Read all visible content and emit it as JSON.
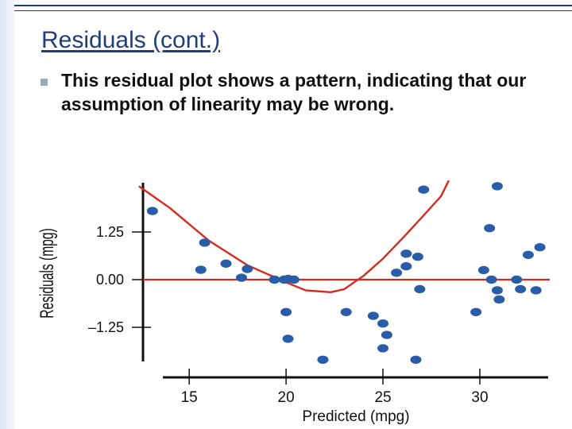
{
  "slide": {
    "title": "Residuals (cont.)",
    "bullet": "This residual plot shows a pattern, indicating that our assumption of linearity may be wrong."
  },
  "colors": {
    "accent": "#1f3f7a",
    "point": "#2a5da8",
    "curve": "#d62a1e",
    "axis": "#111111"
  },
  "chart_data": {
    "type": "scatter",
    "xlabel": "Predicted (mpg)",
    "ylabel": "Residuals (mpg)",
    "x_ticks": [
      15,
      20,
      25,
      30
    ],
    "y_ticks": [
      {
        "value": 1.25,
        "label": "1.25"
      },
      {
        "value": 0,
        "label": "0.00"
      },
      {
        "value": -1.25,
        "label": "–1.25"
      }
    ],
    "xlim": [
      11.8,
      33.5
    ],
    "ylim": [
      -2.1,
      2.4
    ],
    "grid": false,
    "points": [
      {
        "x": 13.1,
        "y": 1.8
      },
      {
        "x": 15.8,
        "y": 0.97
      },
      {
        "x": 15.6,
        "y": 0.26
      },
      {
        "x": 16.9,
        "y": 0.42
      },
      {
        "x": 17.7,
        "y": 0.05
      },
      {
        "x": 18.0,
        "y": 0.28
      },
      {
        "x": 19.4,
        "y": 0.0
      },
      {
        "x": 19.9,
        "y": 0.0
      },
      {
        "x": 20.1,
        "y": 0.02
      },
      {
        "x": 20.4,
        "y": 0.0
      },
      {
        "x": 20.0,
        "y": -0.85
      },
      {
        "x": 20.1,
        "y": -1.55
      },
      {
        "x": 21.9,
        "y": -2.1
      },
      {
        "x": 23.1,
        "y": -0.85
      },
      {
        "x": 24.5,
        "y": -0.95
      },
      {
        "x": 25.0,
        "y": -1.15
      },
      {
        "x": 25.2,
        "y": -1.45
      },
      {
        "x": 25.0,
        "y": -1.8
      },
      {
        "x": 25.7,
        "y": 0.18
      },
      {
        "x": 26.2,
        "y": 0.35
      },
      {
        "x": 26.2,
        "y": 0.68
      },
      {
        "x": 26.8,
        "y": 0.6
      },
      {
        "x": 26.9,
        "y": -0.25
      },
      {
        "x": 26.7,
        "y": -2.1
      },
      {
        "x": 27.1,
        "y": 2.36
      },
      {
        "x": 29.8,
        "y": -0.85
      },
      {
        "x": 30.2,
        "y": 0.25
      },
      {
        "x": 30.5,
        "y": 1.35
      },
      {
        "x": 30.6,
        "y": 0.0
      },
      {
        "x": 30.9,
        "y": -0.28
      },
      {
        "x": 31.0,
        "y": -0.52
      },
      {
        "x": 30.9,
        "y": 2.45
      },
      {
        "x": 31.9,
        "y": 0.0
      },
      {
        "x": 32.1,
        "y": -0.25
      },
      {
        "x": 32.5,
        "y": 0.65
      },
      {
        "x": 32.9,
        "y": -0.28
      },
      {
        "x": 33.1,
        "y": 0.85
      }
    ],
    "reference_line": {
      "y": 0
    },
    "trend_curve": [
      {
        "x": 12.4,
        "y": 2.45
      },
      {
        "x": 14.0,
        "y": 1.88
      },
      {
        "x": 16.0,
        "y": 1.03
      },
      {
        "x": 18.0,
        "y": 0.38
      },
      {
        "x": 20.0,
        "y": -0.07
      },
      {
        "x": 21.0,
        "y": -0.28
      },
      {
        "x": 22.3,
        "y": -0.33
      },
      {
        "x": 23.0,
        "y": -0.25
      },
      {
        "x": 24.0,
        "y": 0.1
      },
      {
        "x": 25.0,
        "y": 0.55
      },
      {
        "x": 26.0,
        "y": 1.08
      },
      {
        "x": 27.0,
        "y": 1.63
      },
      {
        "x": 28.0,
        "y": 2.19
      },
      {
        "x": 28.4,
        "y": 2.6
      }
    ]
  }
}
